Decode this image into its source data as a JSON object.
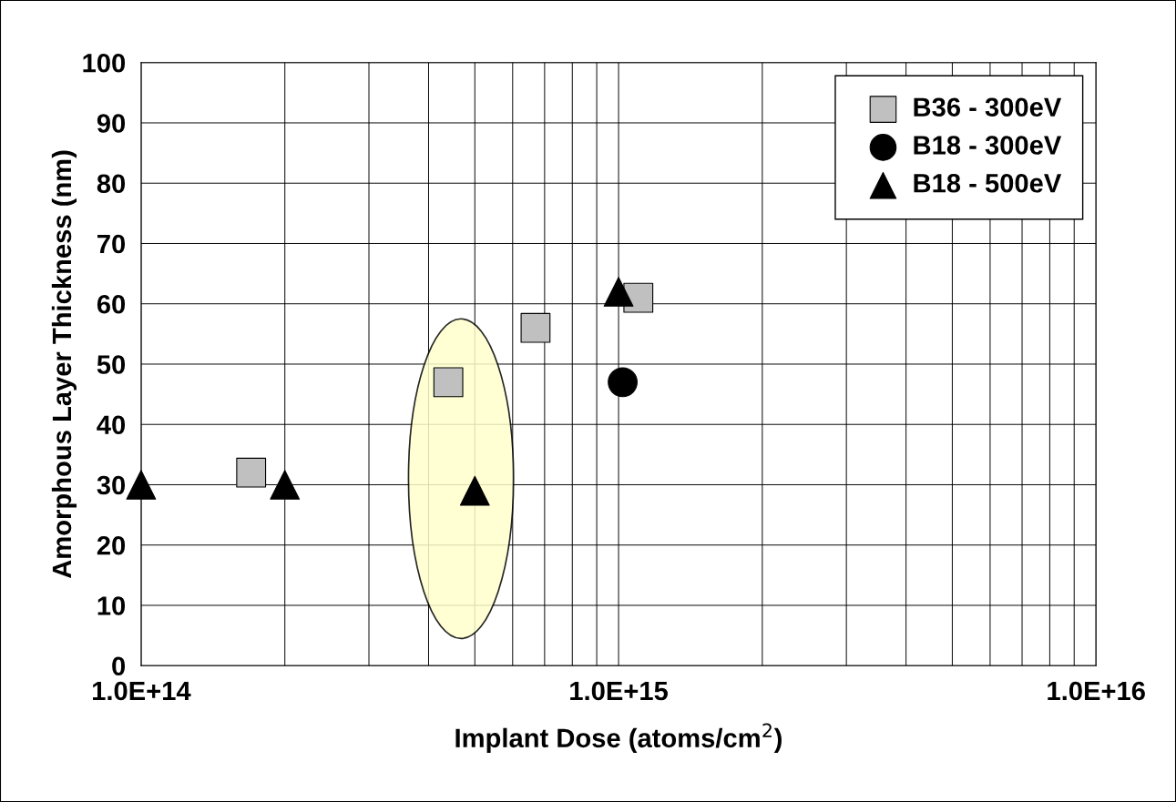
{
  "chart_data": {
    "type": "scatter",
    "xlabel": "Implant Dose (atoms/cm$^{2}$)",
    "ylabel": "Amorphous Layer Thickness (nm)",
    "log": "x",
    "xlim": [
      100000000000000.0,
      1e+16
    ],
    "xticks": [
      {
        "value": 100000000000000.0,
        "label": "1.0E+14"
      },
      {
        "value": 1000000000000000.0,
        "label": "1.0E+15"
      },
      {
        "value": 1e+16,
        "label": "1.0E+16"
      }
    ],
    "ylim": [
      0,
      100
    ],
    "yticks": [
      0,
      10,
      20,
      30,
      40,
      50,
      60,
      70,
      80,
      90,
      100
    ],
    "grid": true,
    "legend": "top right",
    "series": [
      {
        "name": "B36 - 300eV",
        "color": "#c0c0c0",
        "marker": "square",
        "x": [
          170000000000000.0,
          440000000000000.0,
          670000000000000.0,
          1100000000000000.0
        ],
        "values": [
          32,
          47,
          56,
          61
        ]
      },
      {
        "name": "B18 - 300eV",
        "color": "#000000",
        "marker": "circle",
        "x": [
          1020000000000000.0
        ],
        "values": [
          47
        ]
      },
      {
        "name": "B18 - 500eV",
        "color": "#000000",
        "marker": "triangle",
        "x": [
          100000000000000.0,
          200000000000000.0,
          500000000000000.0,
          1000000000000000.0
        ],
        "values": [
          30,
          30,
          29,
          62
        ]
      }
    ]
  }
}
